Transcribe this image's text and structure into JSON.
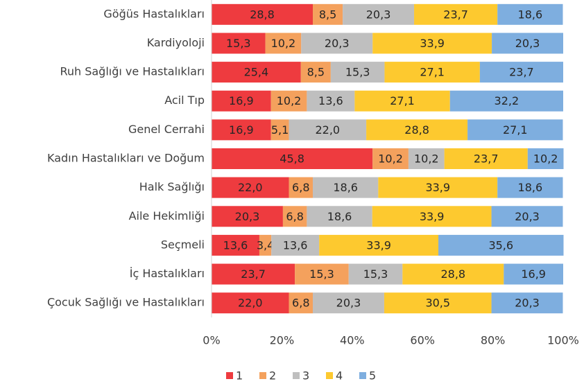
{
  "chart_data": {
    "type": "stacked_barh",
    "categories": [
      "Göğüs Hastalıkları",
      "Kardiyoloji",
      "Ruh Sağlığı ve Hastalıkları",
      "Acil Tıp",
      "Genel Cerrahi",
      "Kadın Hastalıkları ve Doğum",
      "Halk Sağlığı",
      "Aile Hekimliği",
      "Seçmeli",
      "İç Hastalıkları",
      "Çocuk Sağlığı ve Hastalıkları"
    ],
    "series": [
      {
        "name": "1",
        "color": "#ee3b3f",
        "values": [
          28.8,
          15.3,
          25.4,
          16.9,
          16.9,
          45.8,
          22.0,
          20.3,
          13.6,
          23.7,
          22.0
        ],
        "value_labels": [
          "28,8",
          "15,3",
          "25,4",
          "16,9",
          "16,9",
          "45,8",
          "22,0",
          "20,3",
          "13,6",
          "23,7",
          "22,0"
        ]
      },
      {
        "name": "2",
        "color": "#f4a15d",
        "values": [
          8.5,
          10.2,
          8.5,
          10.2,
          5.1,
          10.2,
          6.8,
          6.8,
          3.4,
          15.3,
          6.8
        ],
        "value_labels": [
          "8,5",
          "10,2",
          "8,5",
          "10,2",
          "5,1",
          "10,2",
          "6,8",
          "6,8",
          "3,4",
          "15,3",
          "6,8"
        ]
      },
      {
        "name": "3",
        "color": "#bfbfbf",
        "values": [
          20.3,
          20.3,
          15.3,
          13.6,
          22.0,
          10.2,
          18.6,
          18.6,
          13.6,
          15.3,
          20.3
        ],
        "value_labels": [
          "20,3",
          "20,3",
          "15,3",
          "13,6",
          "22,0",
          "10,2",
          "18,6",
          "18,6",
          "13,6",
          "15,3",
          "20,3"
        ]
      },
      {
        "name": "4",
        "color": "#fdc92f",
        "values": [
          23.7,
          33.9,
          27.1,
          27.1,
          28.8,
          23.7,
          33.9,
          33.9,
          33.9,
          28.8,
          30.5
        ],
        "value_labels": [
          "23,7",
          "33,9",
          "27,1",
          "27,1",
          "28,8",
          "23,7",
          "33,9",
          "33,9",
          "33,9",
          "28,8",
          "30,5"
        ]
      },
      {
        "name": "5",
        "color": "#7eaedf",
        "values": [
          18.6,
          20.3,
          23.7,
          32.2,
          27.1,
          10.2,
          18.6,
          20.3,
          35.6,
          16.9,
          20.3
        ],
        "value_labels": [
          "18,6",
          "20,3",
          "23,7",
          "32,2",
          "27,1",
          "10,2",
          "18,6",
          "20,3",
          "35,6",
          "16,9",
          "20,3"
        ]
      }
    ],
    "xlim": [
      0,
      100
    ],
    "xticks": [
      {
        "value": 0,
        "label": "0%"
      },
      {
        "value": 20,
        "label": "20%"
      },
      {
        "value": 40,
        "label": "40%"
      },
      {
        "value": 60,
        "label": "60%"
      },
      {
        "value": 80,
        "label": "80%"
      },
      {
        "value": 100,
        "label": "100%"
      }
    ],
    "legend": "bottom"
  }
}
